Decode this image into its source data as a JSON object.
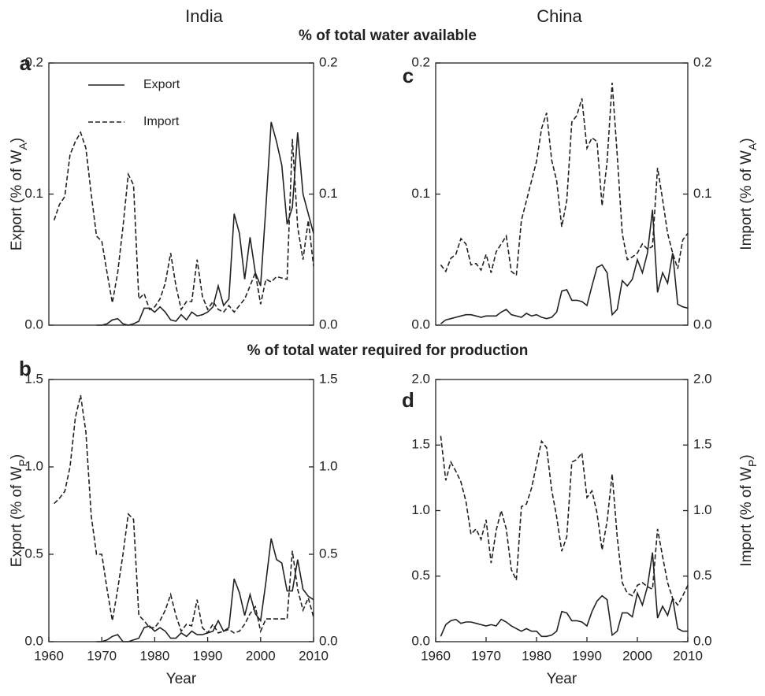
{
  "column_titles": [
    "India",
    "China"
  ],
  "row_titles": [
    "% of total water available",
    "% of total water required for production"
  ],
  "chart_data": [
    {
      "type": "line",
      "panel_label": "a",
      "ylabel": [
        "Export (% of W",
        "A",
        ")"
      ],
      "legend": true,
      "legend_corner": "upper left",
      "x": [
        1961,
        1962,
        1963,
        1964,
        1965,
        1966,
        1967,
        1968,
        1969,
        1970,
        1971,
        1972,
        1973,
        1974,
        1975,
        1976,
        1977,
        1978,
        1979,
        1980,
        1981,
        1982,
        1983,
        1984,
        1985,
        1986,
        1987,
        1988,
        1989,
        1990,
        1991,
        1992,
        1993,
        1994,
        1995,
        1996,
        1997,
        1998,
        1999,
        2000,
        2001,
        2002,
        2003,
        2004,
        2005,
        2006,
        2007,
        2008,
        2009,
        2010
      ],
      "xlim": [
        1960,
        2010
      ],
      "ylim": [
        0,
        0.2
      ],
      "yticks": [
        {
          "value": 0,
          "label": "0.0"
        },
        0.1,
        0.2
      ],
      "y2lim": [
        0,
        0.2
      ],
      "y2ticks": [
        {
          "value": 0,
          "label": "0.0"
        },
        0.1,
        0.2
      ],
      "series": [
        {
          "name": "Export",
          "color": "#222222",
          "dash": "solid",
          "values": [
            null,
            null,
            null,
            null,
            null,
            null,
            null,
            null,
            0,
            0,
            0.001,
            0.004,
            0.005,
            0.001,
            0,
            0.001,
            0.003,
            0.013,
            0.013,
            0.01,
            0.014,
            0.01,
            0.004,
            0.003,
            0.008,
            0.004,
            0.01,
            0.007,
            0.008,
            0.01,
            0.014,
            0.03,
            0.015,
            0.02,
            0.085,
            0.07,
            0.035,
            0.067,
            0.04,
            0.03,
            0.09,
            0.155,
            0.14,
            0.122,
            0.077,
            0.09,
            0.147,
            0.1,
            0.085,
            0.07
          ]
        },
        {
          "name": "Import",
          "color": "#222222",
          "dash": "dashed",
          "axis": "y2",
          "values": [
            0.08,
            0.092,
            0.098,
            0.13,
            0.14,
            0.147,
            0.135,
            0.1,
            0.068,
            0.064,
            0.04,
            0.017,
            0.04,
            0.075,
            0.115,
            0.107,
            0.02,
            0.024,
            0.012,
            0.014,
            0.02,
            0.032,
            0.055,
            0.03,
            0.012,
            0.018,
            0.018,
            0.05,
            0.022,
            0.012,
            0.018,
            0.012,
            0.01,
            0.015,
            0.01,
            0.015,
            0.02,
            0.03,
            0.04,
            0.016,
            0.035,
            0.033,
            0.037,
            0.036,
            0.035,
            0.142,
            0.075,
            0.05,
            0.08,
            0.045
          ]
        }
      ]
    },
    {
      "type": "line",
      "panel_label": "c",
      "y2label": [
        "Import (% of W",
        "A",
        ")"
      ],
      "x": [
        1961,
        1962,
        1963,
        1964,
        1965,
        1966,
        1967,
        1968,
        1969,
        1970,
        1971,
        1972,
        1973,
        1974,
        1975,
        1976,
        1977,
        1978,
        1979,
        1980,
        1981,
        1982,
        1983,
        1984,
        1985,
        1986,
        1987,
        1988,
        1989,
        1990,
        1991,
        1992,
        1993,
        1994,
        1995,
        1996,
        1997,
        1998,
        1999,
        2000,
        2001,
        2002,
        2003,
        2004,
        2005,
        2006,
        2007,
        2008,
        2009,
        2010
      ],
      "xlim": [
        1960,
        2010
      ],
      "ylim": [
        0,
        0.2
      ],
      "yticks": [
        {
          "value": 0,
          "label": "0.0"
        },
        0.1,
        0.2
      ],
      "y2lim": [
        0,
        0.2
      ],
      "y2ticks": [
        {
          "value": 0,
          "label": "0.0"
        },
        0.1,
        0.2
      ],
      "series": [
        {
          "color": "#222222",
          "dash": "solid",
          "values": [
            0.001,
            0.004,
            0.005,
            0.006,
            0.007,
            0.008,
            0.008,
            0.007,
            0.006,
            0.007,
            0.007,
            0.007,
            0.01,
            0.012,
            0.008,
            0.007,
            0.006,
            0.009,
            0.007,
            0.008,
            0.006,
            0.005,
            0.006,
            0.01,
            0.026,
            0.027,
            0.019,
            0.019,
            0.018,
            0.015,
            0.03,
            0.044,
            0.046,
            0.04,
            0.008,
            0.012,
            0.034,
            0.03,
            0.035,
            0.05,
            0.04,
            0.055,
            0.088,
            0.025,
            0.04,
            0.032,
            0.055,
            0.016,
            0.014,
            0.013
          ]
        },
        {
          "color": "#222222",
          "dash": "dashed",
          "axis": "y2",
          "values": [
            0.046,
            0.041,
            0.051,
            0.054,
            0.066,
            0.062,
            0.046,
            0.047,
            0.042,
            0.054,
            0.04,
            0.056,
            0.062,
            0.068,
            0.041,
            0.038,
            0.08,
            0.095,
            0.11,
            0.125,
            0.15,
            0.162,
            0.126,
            0.11,
            0.075,
            0.095,
            0.155,
            0.16,
            0.173,
            0.135,
            0.143,
            0.14,
            0.091,
            0.125,
            0.185,
            0.13,
            0.07,
            0.05,
            0.052,
            0.055,
            0.062,
            0.058,
            0.06,
            0.12,
            0.096,
            0.07,
            0.055,
            0.043,
            0.065,
            0.07
          ]
        }
      ]
    },
    {
      "type": "line",
      "panel_label": "b",
      "ylabel": [
        "Export (% of W",
        "P",
        ")"
      ],
      "xlabel": "Year",
      "x": [
        1961,
        1962,
        1963,
        1964,
        1965,
        1966,
        1967,
        1968,
        1969,
        1970,
        1971,
        1972,
        1973,
        1974,
        1975,
        1976,
        1977,
        1978,
        1979,
        1980,
        1981,
        1982,
        1983,
        1984,
        1985,
        1986,
        1987,
        1988,
        1989,
        1990,
        1991,
        1992,
        1993,
        1994,
        1995,
        1996,
        1997,
        1998,
        1999,
        2000,
        2001,
        2002,
        2003,
        2004,
        2005,
        2006,
        2007,
        2008,
        2009,
        2010
      ],
      "xlim": [
        1960,
        2010
      ],
      "xticks": [
        1960,
        1970,
        1980,
        1990,
        2000,
        2010
      ],
      "ylim": [
        0,
        1.5
      ],
      "yticks": [
        {
          "value": 0,
          "label": "0.0"
        },
        0.5,
        {
          "value": 1,
          "label": "1.0"
        },
        1.5
      ],
      "y2lim": [
        0,
        1.5
      ],
      "y2ticks": [
        {
          "value": 0,
          "label": "0.0"
        },
        0.5,
        {
          "value": 1,
          "label": "1.0"
        },
        1.5
      ],
      "series": [
        {
          "color": "#222222",
          "dash": "solid",
          "values": [
            null,
            null,
            null,
            null,
            null,
            null,
            null,
            null,
            0,
            0,
            0.01,
            0.03,
            0.04,
            0,
            0,
            0.01,
            0.02,
            0.08,
            0.09,
            0.06,
            0.08,
            0.06,
            0.02,
            0.02,
            0.05,
            0.03,
            0.06,
            0.04,
            0.04,
            0.05,
            0.06,
            0.12,
            0.06,
            0.08,
            0.36,
            0.28,
            0.15,
            0.27,
            0.16,
            0.12,
            0.34,
            0.59,
            0.47,
            0.45,
            0.29,
            0.29,
            0.47,
            0.3,
            0.26,
            0.24
          ]
        },
        {
          "color": "#222222",
          "dash": "dashed",
          "axis": "y2",
          "values": [
            0.79,
            0.82,
            0.86,
            1.0,
            1.28,
            1.41,
            1.2,
            0.72,
            0.5,
            0.5,
            0.3,
            0.12,
            0.3,
            0.5,
            0.73,
            0.7,
            0.15,
            0.12,
            0.08,
            0.08,
            0.12,
            0.18,
            0.27,
            0.15,
            0.06,
            0.1,
            0.09,
            0.24,
            0.08,
            0.05,
            0.1,
            0.05,
            0.06,
            0.07,
            0.05,
            0.06,
            0.1,
            0.16,
            0.2,
            0.06,
            0.13,
            0.13,
            0.13,
            0.13,
            0.13,
            0.52,
            0.3,
            0.18,
            0.25,
            0.14
          ]
        }
      ]
    },
    {
      "type": "line",
      "panel_label": "d",
      "y2label": [
        "Import (% of W",
        "P",
        ")"
      ],
      "xlabel": "Year",
      "x": [
        1961,
        1962,
        1963,
        1964,
        1965,
        1966,
        1967,
        1968,
        1969,
        1970,
        1971,
        1972,
        1973,
        1974,
        1975,
        1976,
        1977,
        1978,
        1979,
        1980,
        1981,
        1982,
        1983,
        1984,
        1985,
        1986,
        1987,
        1988,
        1989,
        1990,
        1991,
        1992,
        1993,
        1994,
        1995,
        1996,
        1997,
        1998,
        1999,
        2000,
        2001,
        2002,
        2003,
        2004,
        2005,
        2006,
        2007,
        2008,
        2009,
        2010
      ],
      "xlim": [
        1960,
        2010
      ],
      "xticks": [
        1960,
        1970,
        1980,
        1990,
        2000,
        2010
      ],
      "ylim": [
        0,
        2
      ],
      "yticks": [
        {
          "value": 0,
          "label": "0.0"
        },
        0.5,
        {
          "value": 1,
          "label": "1.0"
        },
        1.5,
        {
          "value": 2,
          "label": "2.0"
        }
      ],
      "y2lim": [
        0,
        2
      ],
      "y2ticks": [
        {
          "value": 0,
          "label": "0.0"
        },
        0.5,
        {
          "value": 1,
          "label": "1.0"
        },
        1.5,
        {
          "value": 2,
          "label": "2.0"
        }
      ],
      "series": [
        {
          "color": "#222222",
          "dash": "solid",
          "values": [
            0.04,
            0.13,
            0.16,
            0.17,
            0.14,
            0.15,
            0.15,
            0.14,
            0.13,
            0.12,
            0.13,
            0.12,
            0.17,
            0.15,
            0.12,
            0.1,
            0.08,
            0.1,
            0.08,
            0.08,
            0.04,
            0.04,
            0.05,
            0.08,
            0.23,
            0.22,
            0.16,
            0.16,
            0.15,
            0.12,
            0.23,
            0.31,
            0.35,
            0.32,
            0.05,
            0.08,
            0.22,
            0.22,
            0.19,
            0.37,
            0.28,
            0.42,
            0.68,
            0.18,
            0.27,
            0.2,
            0.33,
            0.1,
            0.08,
            0.08
          ]
        },
        {
          "color": "#222222",
          "dash": "dashed",
          "axis": "y2",
          "values": [
            1.57,
            1.23,
            1.37,
            1.3,
            1.22,
            1.07,
            0.82,
            0.86,
            0.78,
            0.93,
            0.6,
            0.85,
            1.0,
            0.86,
            0.55,
            0.47,
            1.03,
            1.05,
            1.17,
            1.35,
            1.53,
            1.48,
            1.16,
            0.95,
            0.69,
            0.8,
            1.37,
            1.39,
            1.44,
            1.1,
            1.15,
            0.98,
            0.7,
            0.92,
            1.28,
            0.8,
            0.45,
            0.37,
            0.35,
            0.43,
            0.45,
            0.42,
            0.4,
            0.86,
            0.65,
            0.45,
            0.33,
            0.28,
            0.35,
            0.43
          ]
        }
      ]
    }
  ]
}
